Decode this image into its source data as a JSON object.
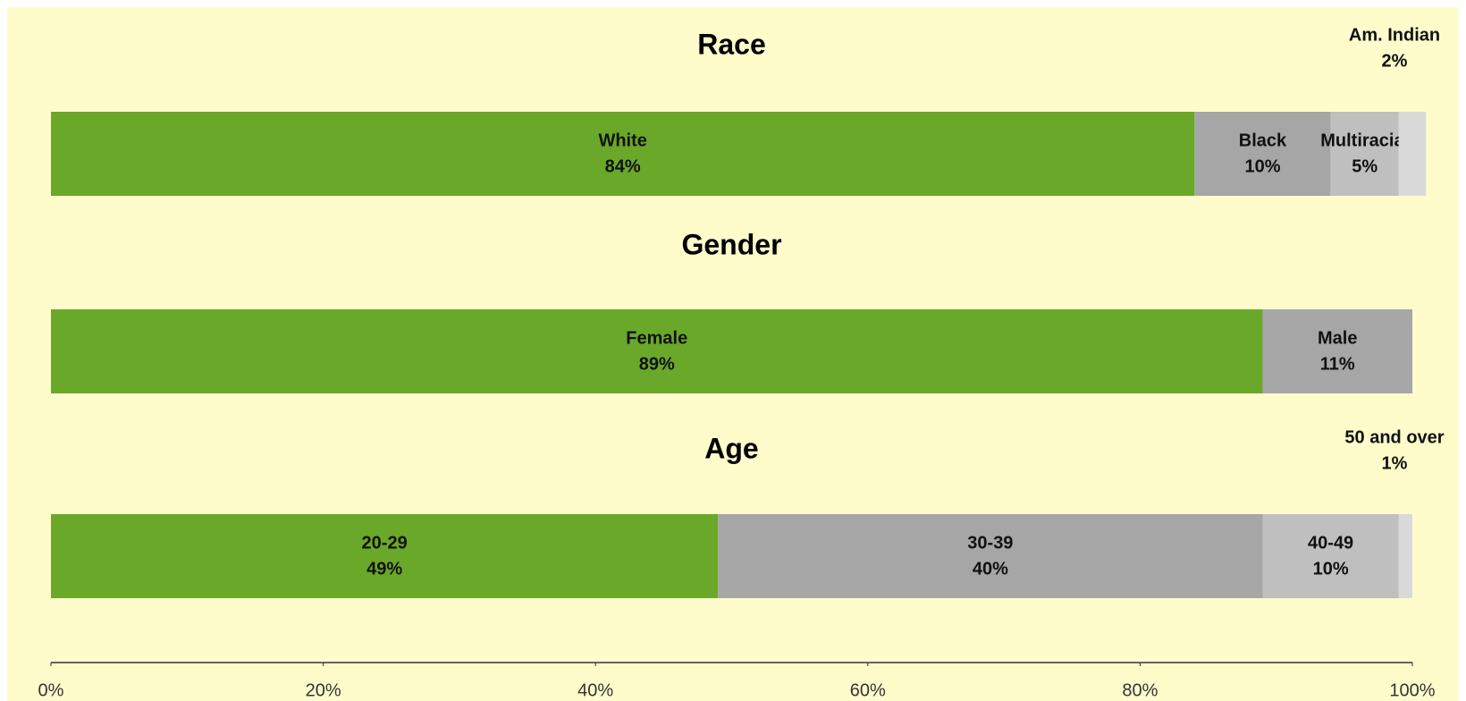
{
  "chart_data": {
    "type": "stacked_bar",
    "panels": [
      {
        "title": "Race",
        "categories": [
          "White",
          "Black",
          "Multiracial",
          "Am. Indian"
        ],
        "values": [
          84,
          10,
          5,
          2
        ],
        "value_labels": [
          "84%",
          "10%",
          "5%",
          "2%"
        ],
        "colors": [
          "#6aa829",
          "#a6a6a6",
          "#bfbfbf",
          "#d9d9d9"
        ]
      },
      {
        "title": "Gender",
        "categories": [
          "Female",
          "Male"
        ],
        "values": [
          89,
          11
        ],
        "value_labels": [
          "89%",
          "11%"
        ],
        "colors": [
          "#6aa829",
          "#a6a6a6"
        ]
      },
      {
        "title": "Age",
        "categories": [
          "20-29",
          "30-39",
          "40-49",
          "50 and over"
        ],
        "values": [
          49,
          40,
          10,
          1
        ],
        "value_labels": [
          "49%",
          "40%",
          "10%",
          "1%"
        ],
        "colors": [
          "#6aa829",
          "#a6a6a6",
          "#bfbfbf",
          "#d9d9d9"
        ]
      }
    ],
    "xlim": [
      0,
      100
    ],
    "xticks": [
      {
        "value": 0,
        "label": "0%"
      },
      {
        "value": 20,
        "label": "20%"
      },
      {
        "value": 40,
        "label": "40%"
      },
      {
        "value": 60,
        "label": "60%"
      },
      {
        "value": 80,
        "label": "80%"
      },
      {
        "value": 100,
        "label": "100%"
      }
    ]
  }
}
